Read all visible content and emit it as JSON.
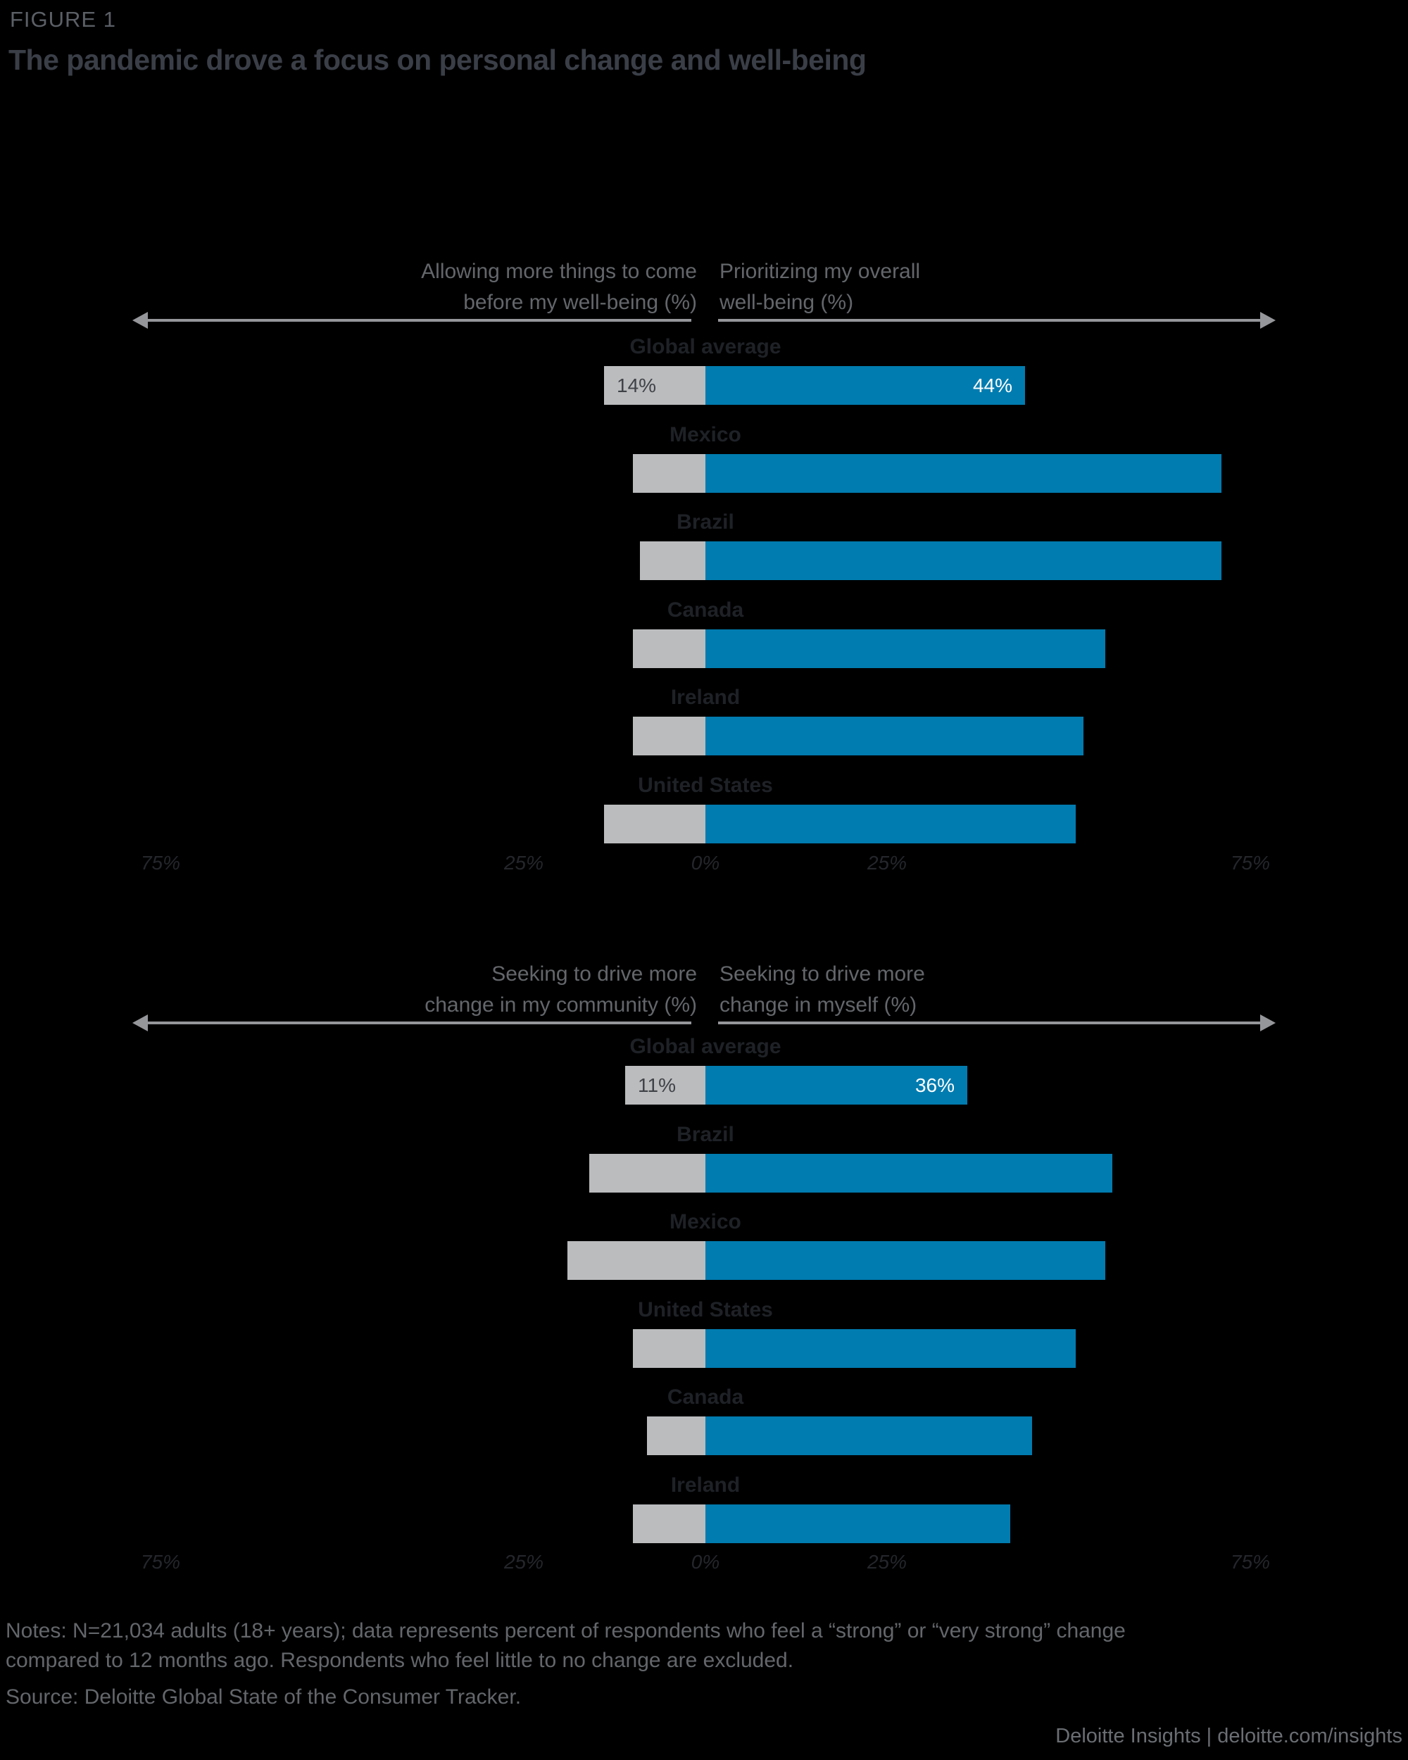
{
  "figure_label": "FIGURE 1",
  "title": "The pandemic drove a focus on personal change and well-being",
  "colors": {
    "background": "#000000",
    "bar_blue": "#007CB0",
    "bar_gray": "#BBBCBE",
    "arrow_gray": "#95969A",
    "muted_text": "#63666A",
    "category_label": "#1E2126",
    "title_text": "#3A3E47",
    "value_on_gray": "#3F4247",
    "value_on_blue": "#FFFFFF"
  },
  "chart_data": [
    {
      "type": "bar",
      "orientation": "diverging-horizontal",
      "left_label_lines": [
        "Allowing more things to come",
        "before my well-being (%)"
      ],
      "right_label_lines": [
        "Prioritizing my overall",
        "well-being (%)"
      ],
      "categories": [
        "Global average",
        "Mexico",
        "Brazil",
        "Canada",
        "Ireland",
        "United States"
      ],
      "series": [
        {
          "name": "Allowing more things to come before my well-being (%)",
          "side": "left",
          "color": "gray",
          "values": [
            14,
            10,
            9,
            10,
            10,
            14
          ]
        },
        {
          "name": "Prioritizing my overall well-being (%)",
          "side": "right",
          "color": "blue",
          "values": [
            44,
            71,
            71,
            55,
            52,
            51
          ]
        }
      ],
      "value_labels": [
        {
          "row": 0,
          "left": "14%",
          "right": "44%"
        }
      ],
      "axis_ticks": [
        {
          "value": -75,
          "label": "75%"
        },
        {
          "value": -25,
          "label": "25%"
        },
        {
          "value": 0,
          "label": "0%"
        },
        {
          "value": 25,
          "label": "25%"
        },
        {
          "value": 75,
          "label": "75%"
        }
      ],
      "xlim": [
        -75,
        75
      ],
      "grid": false,
      "legend_position": "none"
    },
    {
      "type": "bar",
      "orientation": "diverging-horizontal",
      "left_label_lines": [
        "Seeking to drive more",
        "change in my community (%)"
      ],
      "right_label_lines": [
        "Seeking to drive more",
        "change in myself (%)"
      ],
      "categories": [
        "Global average",
        "Brazil",
        "Mexico",
        "United States",
        "Canada",
        "Ireland"
      ],
      "series": [
        {
          "name": "Seeking to drive more change in my community (%)",
          "side": "left",
          "color": "gray",
          "values": [
            11,
            16,
            19,
            10,
            8,
            10
          ]
        },
        {
          "name": "Seeking to drive more change in myself (%)",
          "side": "right",
          "color": "blue",
          "values": [
            36,
            56,
            55,
            51,
            45,
            42
          ]
        }
      ],
      "value_labels": [
        {
          "row": 0,
          "left": "11%",
          "right": "36%"
        }
      ],
      "axis_ticks": [
        {
          "value": -75,
          "label": "75%"
        },
        {
          "value": -25,
          "label": "25%"
        },
        {
          "value": 0,
          "label": "0%"
        },
        {
          "value": 25,
          "label": "25%"
        },
        {
          "value": 75,
          "label": "75%"
        }
      ],
      "xlim": [
        -75,
        75
      ],
      "grid": false,
      "legend_position": "none"
    }
  ],
  "notes": {
    "line1": "Notes: N=21,034 adults (18+ years); data represents percent of respondents who feel a “strong” or “very strong” change",
    "line2": "compared to 12 months ago. Respondents who feel little to no change are excluded.",
    "source": "Source: Deloitte Global State of the Consumer Tracker."
  },
  "footer": {
    "brand": "Deloitte Insights",
    "separator": " | ",
    "link": "deloitte.com/insights"
  }
}
